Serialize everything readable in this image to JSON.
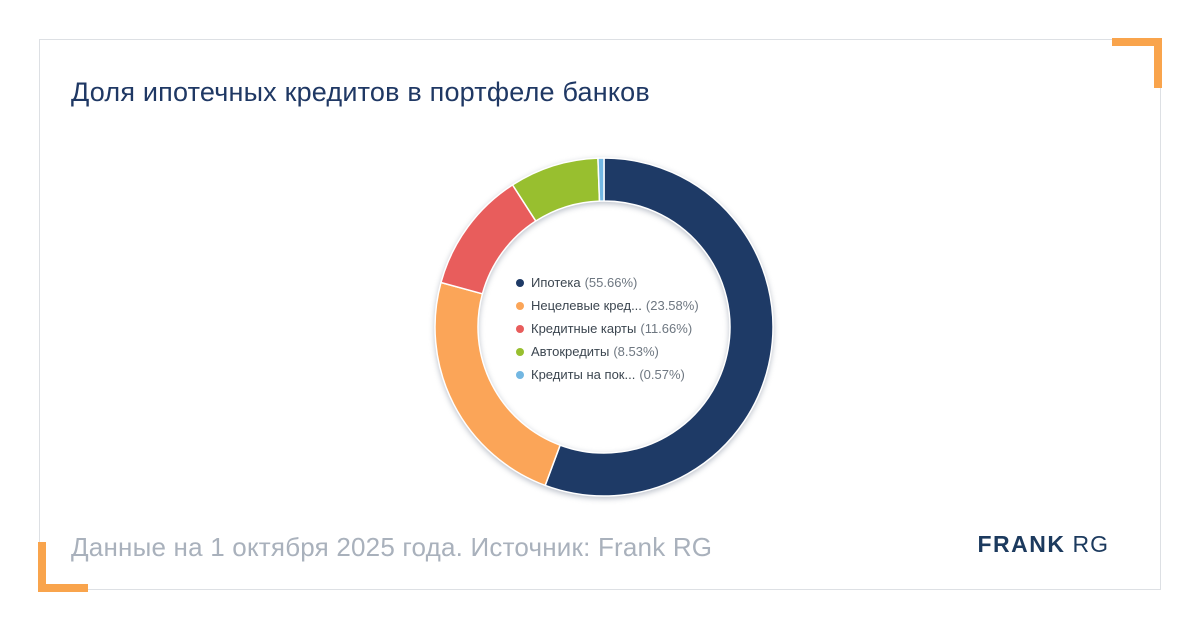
{
  "card": {
    "title": "Доля ипотечных кредитов в портфеле банков",
    "footer": "Данные на 1 октября 2025 года. Источник: Frank RG",
    "logo": {
      "bold": "FRANK",
      "light": "RG"
    }
  },
  "colors": {
    "accent_orange": "#F9A44C",
    "title_navy": "#1F3864",
    "footer_gray": "#A9B1BC",
    "card_border": "#DDE0E4",
    "legend_name": "#3C4650",
    "legend_value": "#6E7781"
  },
  "chart_data": {
    "type": "pie",
    "donut": true,
    "title": "Доля ипотечных кредитов в портфеле банков",
    "units": "%",
    "start_angle_deg": 0,
    "direction": "clockwise",
    "legend_position": "center",
    "outer_radius": 169,
    "inner_radius": 126,
    "series": [
      {
        "name": "Ипотека",
        "value": 55.66,
        "color": "#1E3A66"
      },
      {
        "name": "Нецелевые кред...",
        "value": 23.58,
        "color": "#FBA558"
      },
      {
        "name": "Кредитные карты",
        "value": 11.66,
        "color": "#E85D5C"
      },
      {
        "name": "Автокредиты",
        "value": 8.53,
        "color": "#98BF2F"
      },
      {
        "name": "Кредиты на пок...",
        "value": 0.57,
        "color": "#73B7E2"
      }
    ]
  }
}
